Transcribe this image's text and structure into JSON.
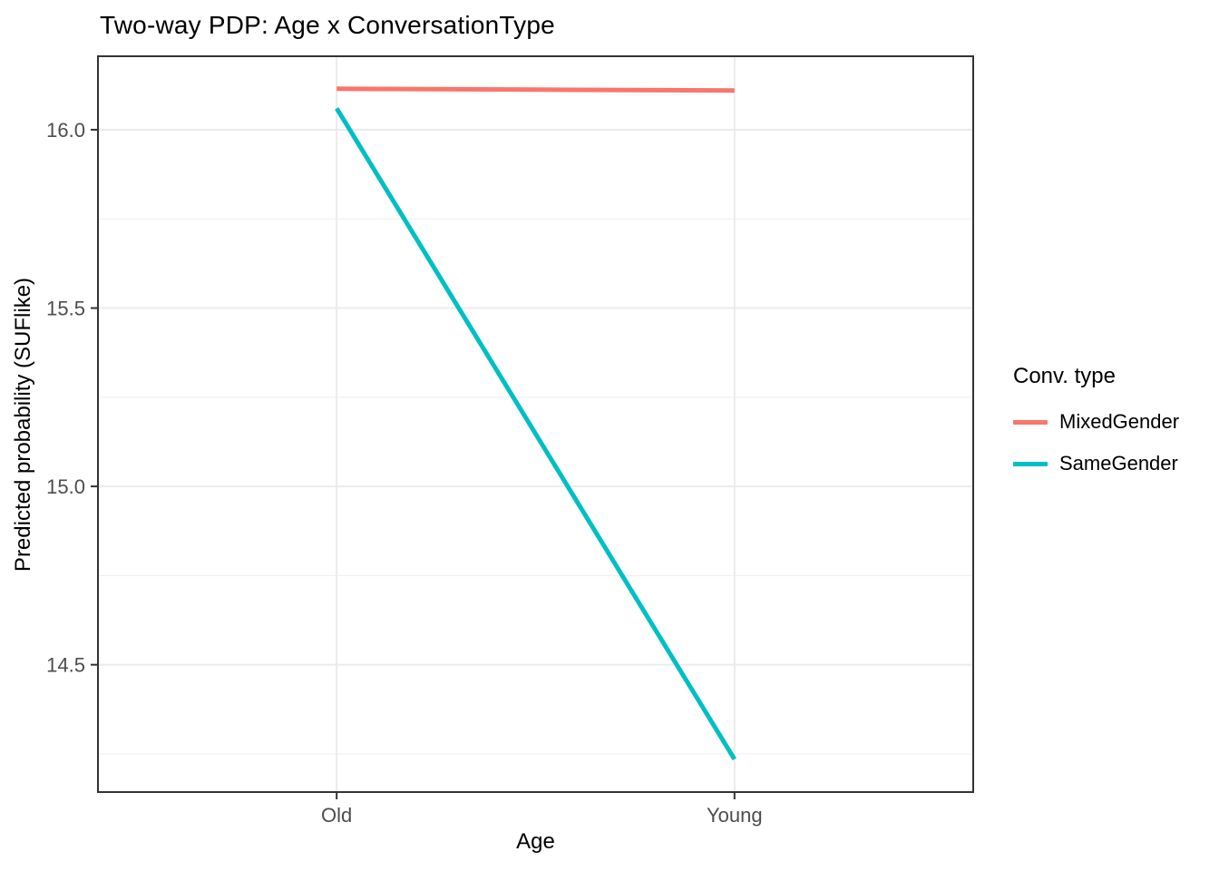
{
  "chart_data": {
    "type": "line",
    "title": "Two-way PDP: Age x ConversationType",
    "xlabel": "Age",
    "ylabel": "Predicted probability (SUFlike)",
    "categories": [
      "Old",
      "Young"
    ],
    "series": [
      {
        "name": "MixedGender",
        "color": "#F8766D",
        "values": [
          16.115,
          16.11
        ]
      },
      {
        "name": "SameGender",
        "color": "#00BFC4",
        "values": [
          16.06,
          14.235
        ]
      }
    ],
    "ylim": [
      14.143,
      16.206
    ],
    "y_major_ticks": [
      16.0,
      15.5,
      15.0,
      14.5
    ],
    "y_tick_labels": [
      "16.0",
      "15.5",
      "15.0",
      "14.5"
    ],
    "y_minor_ticks": [
      15.75,
      15.25,
      14.75,
      14.25
    ],
    "legend_title": "Conv. type",
    "legend_position": "right",
    "grid": true
  },
  "colors": {
    "grid_major": "#EBEBEB",
    "grid_minor": "#EDEDED",
    "panel_border": "#333333",
    "tick": "#333333",
    "tick_label": "#4D4D4D",
    "text": "#000000",
    "background": "#FFFFFF"
  }
}
